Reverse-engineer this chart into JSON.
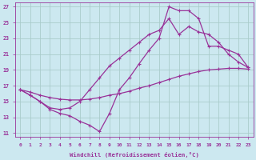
{
  "bg_color": "#cce8f0",
  "line_color": "#993399",
  "grid_color": "#aacccc",
  "xlabel": "Windchill (Refroidissement éolien,°C)",
  "xlabel_color": "#993399",
  "tick_color": "#993399",
  "xlim": [
    -0.5,
    23.5
  ],
  "ylim": [
    10.5,
    27.5
  ],
  "yticks": [
    11,
    13,
    15,
    17,
    19,
    21,
    23,
    25,
    27
  ],
  "xticks": [
    0,
    1,
    2,
    3,
    4,
    5,
    6,
    7,
    8,
    9,
    10,
    11,
    12,
    13,
    14,
    15,
    16,
    17,
    18,
    19,
    20,
    21,
    22,
    23
  ],
  "line1_x": [
    0,
    1,
    2,
    3,
    4,
    5,
    6,
    7,
    8,
    9,
    10,
    11,
    12,
    13,
    14,
    15,
    16,
    17,
    18,
    19,
    20,
    21,
    22,
    23
  ],
  "line1_y": [
    16.5,
    16.2,
    15.8,
    15.5,
    15.3,
    15.2,
    15.2,
    15.3,
    15.5,
    15.8,
    16.0,
    16.3,
    16.7,
    17.0,
    17.4,
    17.8,
    18.2,
    18.5,
    18.8,
    19.0,
    19.1,
    19.2,
    19.2,
    19.1
  ],
  "line2_x": [
    0,
    1,
    2,
    3,
    4,
    5,
    6,
    7,
    8,
    9,
    10,
    11,
    12,
    13,
    14,
    15,
    16,
    17,
    18,
    19,
    20,
    21,
    22,
    23
  ],
  "line2_y": [
    16.5,
    15.8,
    15.0,
    14.0,
    13.5,
    13.2,
    12.5,
    12.0,
    11.2,
    13.5,
    16.5,
    18.0,
    19.8,
    21.5,
    23.0,
    27.0,
    26.5,
    26.5,
    25.5,
    22.0,
    22.0,
    21.5,
    21.0,
    19.3
  ],
  "line3_x": [
    0,
    1,
    2,
    3,
    4,
    5,
    6,
    7,
    8,
    9,
    10,
    11,
    12,
    13,
    14,
    15,
    16,
    17,
    18,
    19,
    20,
    21,
    22,
    23
  ],
  "line3_y": [
    16.5,
    15.8,
    15.0,
    14.2,
    14.0,
    14.2,
    15.0,
    16.5,
    18.0,
    19.5,
    20.5,
    21.5,
    22.5,
    23.5,
    24.0,
    25.5,
    23.5,
    24.5,
    23.8,
    23.5,
    22.5,
    21.0,
    20.0,
    19.3
  ]
}
